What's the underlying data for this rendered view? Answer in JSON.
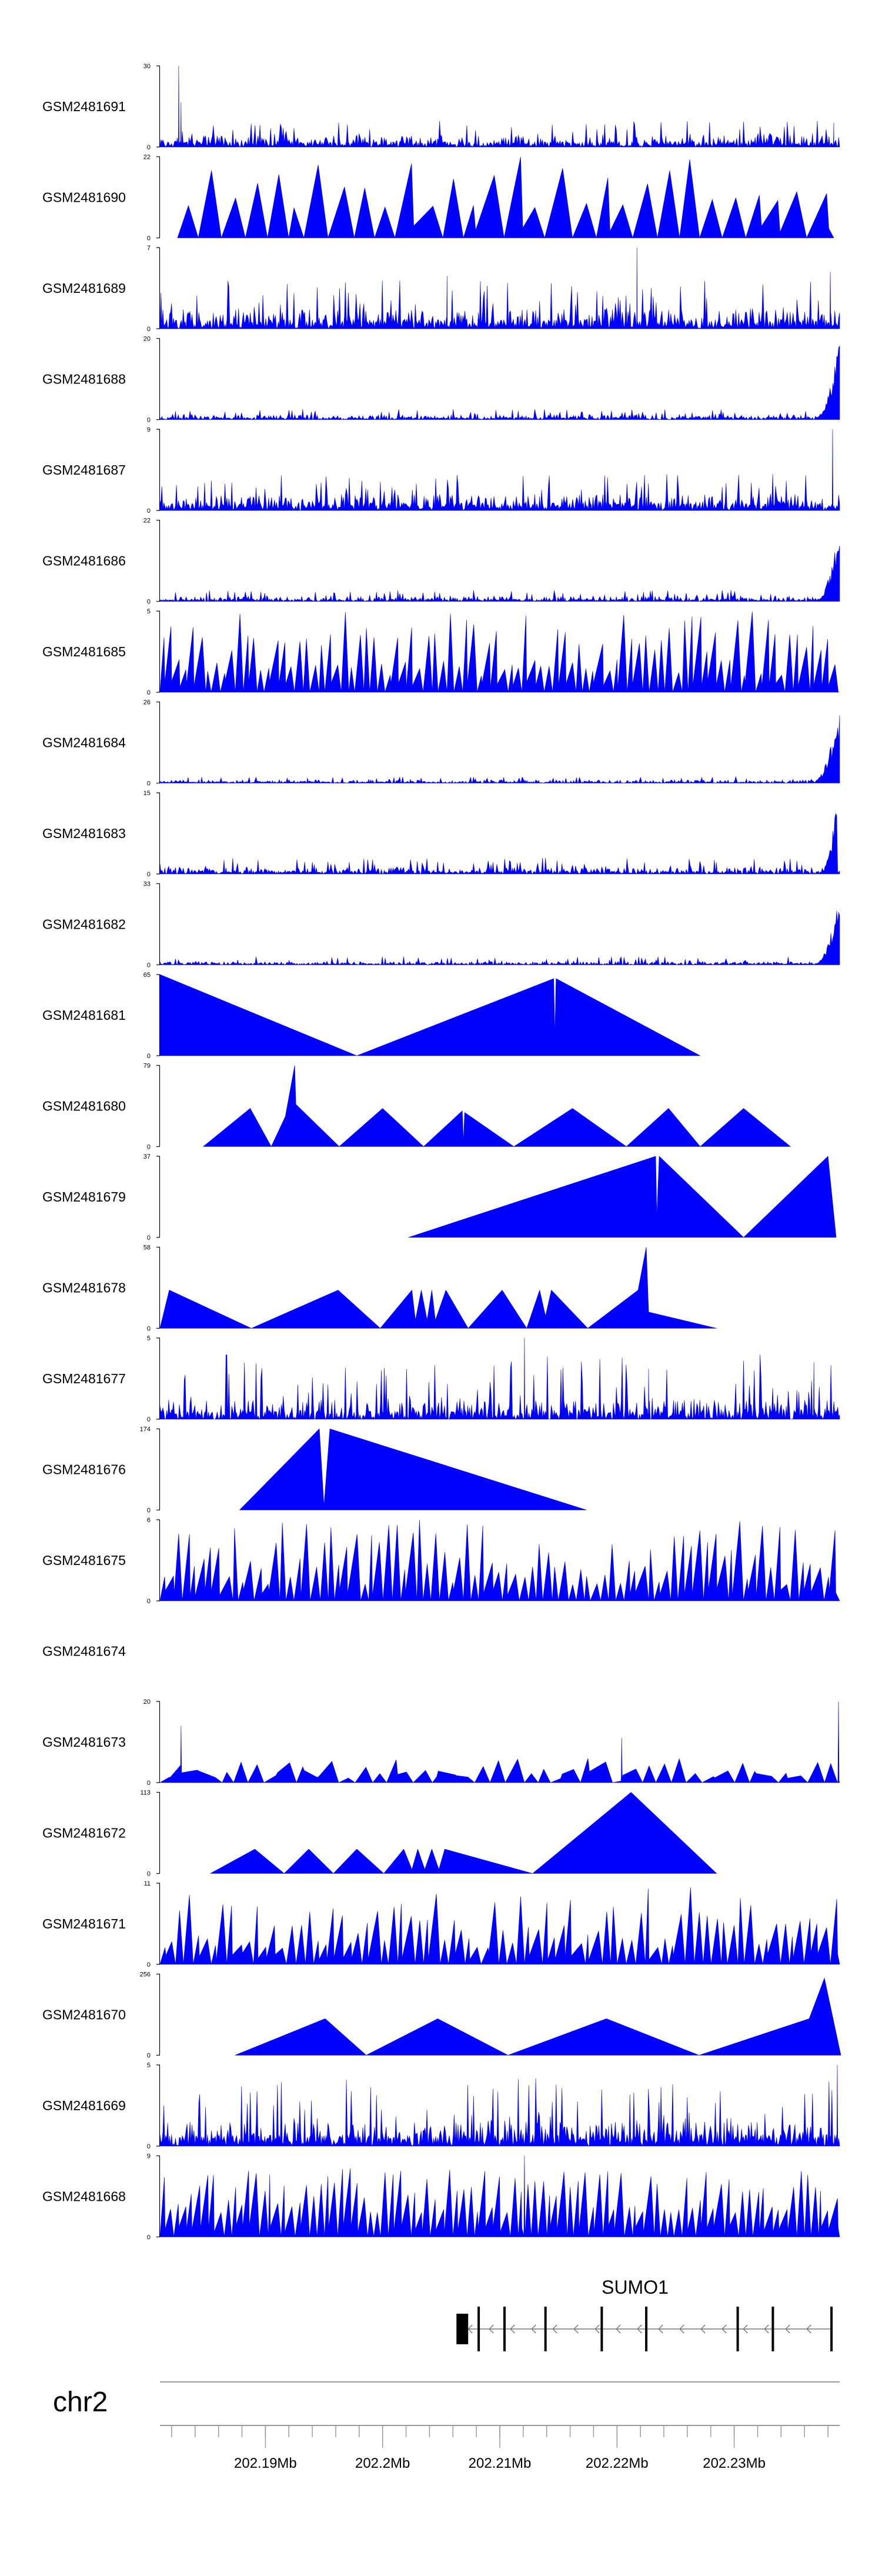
{
  "chart_data": {
    "type": "area",
    "title": "",
    "fill_color": "#0000ff",
    "axis_color": "#000000",
    "genome_axis_color": "#999999",
    "chromosome": "chr2",
    "xlim_mb": [
      202.181,
      202.239
    ],
    "x_ticks": [
      {
        "value": 202.19,
        "label": "202.19Mb"
      },
      {
        "value": 202.2,
        "label": "202.2Mb"
      },
      {
        "value": 202.21,
        "label": "202.21Mb"
      },
      {
        "value": 202.22,
        "label": "202.22Mb"
      },
      {
        "value": 202.23,
        "label": "202.23Mb"
      }
    ],
    "tracks": [
      {
        "name": "GSM2481691",
        "ymax": 30,
        "ymin": 0,
        "style": "noise",
        "density": 1.0,
        "base": 0.07,
        "peak": 0.32,
        "seed": 11,
        "spikes": [
          [
            202.1826,
            1.0
          ],
          [
            202.1828,
            0.55
          ],
          [
            202.2385,
            0.3
          ]
        ]
      },
      {
        "name": "GSM2481690",
        "ymax": 22,
        "ymin": 0,
        "style": "spiky",
        "count": 30,
        "from": 202.1825,
        "to": 202.2385,
        "lo": 0.35,
        "hi": 1.0,
        "seed": 12
      },
      {
        "name": "GSM2481689",
        "ymax": 7,
        "ymin": 0,
        "style": "noise",
        "density": 1.0,
        "base": 0.12,
        "peak": 0.6,
        "seed": 13,
        "spikes": [
          [
            202.2217,
            1.0
          ],
          [
            202.2055,
            0.65
          ],
          [
            202.2382,
            0.7
          ]
        ]
      },
      {
        "name": "GSM2481688",
        "ymax": 20,
        "ymin": 0,
        "style": "noise",
        "density": 1.0,
        "base": 0.03,
        "peak": 0.13,
        "seed": 14,
        "rise": [
          202.2366,
          202.239,
          1.0
        ]
      },
      {
        "name": "GSM2481687",
        "ymax": 9,
        "ymin": 0,
        "style": "noise",
        "density": 1.0,
        "base": 0.1,
        "peak": 0.45,
        "seed": 15,
        "spikes": [
          [
            202.2384,
            1.0
          ]
        ]
      },
      {
        "name": "GSM2481686",
        "ymax": 22,
        "ymin": 0,
        "style": "noise",
        "density": 1.0,
        "base": 0.03,
        "peak": 0.14,
        "seed": 16,
        "rise": [
          202.2368,
          202.239,
          1.0
        ]
      },
      {
        "name": "GSM2481685",
        "ymax": 5,
        "ymin": 0,
        "style": "spiky",
        "count": 90,
        "from": 202.181,
        "to": 202.239,
        "lo": 0.2,
        "hi": 1.0,
        "seed": 17
      },
      {
        "name": "GSM2481684",
        "ymax": 26,
        "ymin": 0,
        "style": "noise",
        "density": 1.0,
        "base": 0.02,
        "peak": 0.08,
        "seed": 18,
        "rise": [
          202.2365,
          202.239,
          1.0
        ]
      },
      {
        "name": "GSM2481683",
        "ymax": 15,
        "ymin": 0,
        "style": "noise",
        "density": 1.0,
        "base": 0.04,
        "peak": 0.2,
        "seed": 19,
        "rise": [
          202.2372,
          202.2388,
          1.0
        ]
      },
      {
        "name": "GSM2481682",
        "ymax": 33,
        "ymin": 0,
        "style": "noise",
        "density": 1.0,
        "base": 0.02,
        "peak": 0.1,
        "seed": 20,
        "rise": [
          202.2367,
          202.239,
          0.95
        ]
      },
      {
        "name": "GSM2481681",
        "ymax": 65,
        "ymin": 0,
        "style": "triangles",
        "points": [
          [
            202.181,
            0
          ],
          [
            202.181,
            1.0
          ],
          [
            202.1978,
            0
          ],
          [
            202.2146,
            0.95
          ],
          [
            202.2147,
            0.25
          ],
          [
            202.2148,
            0.95
          ],
          [
            202.2271,
            0
          ]
        ]
      },
      {
        "name": "GSM2481680",
        "ymax": 79,
        "ymin": 0,
        "style": "triangles",
        "points": [
          [
            202.1847,
            0
          ],
          [
            202.1887,
            0.47
          ],
          [
            202.1905,
            0
          ],
          [
            202.1917,
            0.37
          ],
          [
            202.1925,
            1.0
          ],
          [
            202.1926,
            0.52
          ],
          [
            202.1963,
            0
          ],
          [
            202.2,
            0.47
          ],
          [
            202.2035,
            0
          ],
          [
            202.2068,
            0.44
          ],
          [
            202.2069,
            0.06
          ],
          [
            202.207,
            0.42
          ],
          [
            202.2112,
            0
          ],
          [
            202.2162,
            0.47
          ],
          [
            202.2208,
            0
          ],
          [
            202.2244,
            0.47
          ],
          [
            202.2271,
            0
          ],
          [
            202.2308,
            0.47
          ],
          [
            202.2348,
            0
          ]
        ]
      },
      {
        "name": "GSM2481679",
        "ymax": 37,
        "ymin": 0,
        "style": "triangles",
        "points": [
          [
            202.2022,
            0
          ],
          [
            202.2233,
            1.0
          ],
          [
            202.2234,
            0.25
          ],
          [
            202.2236,
            1.0
          ],
          [
            202.2308,
            0
          ],
          [
            202.238,
            1.0
          ],
          [
            202.2387,
            0
          ]
        ]
      },
      {
        "name": "GSM2481678",
        "ymax": 58,
        "ymin": 0,
        "style": "triangles",
        "points": [
          [
            202.181,
            0
          ],
          [
            202.1818,
            0.47
          ],
          [
            202.1888,
            0
          ],
          [
            202.1962,
            0.47
          ],
          [
            202.1998,
            0
          ],
          [
            202.2025,
            0.47
          ],
          [
            202.2028,
            0.1
          ],
          [
            202.2033,
            0.47
          ],
          [
            202.2038,
            0.1
          ],
          [
            202.2042,
            0.47
          ],
          [
            202.2045,
            0.1
          ],
          [
            202.2054,
            0.47
          ],
          [
            202.2073,
            0
          ],
          [
            202.2102,
            0.47
          ],
          [
            202.2123,
            0
          ],
          [
            202.2134,
            0.47
          ],
          [
            202.2139,
            0.15
          ],
          [
            202.2144,
            0.47
          ],
          [
            202.2175,
            0
          ],
          [
            202.2218,
            0.47
          ],
          [
            202.2225,
            1.0
          ],
          [
            202.2227,
            0.2
          ],
          [
            202.2285,
            0
          ]
        ]
      },
      {
        "name": "GSM2481677",
        "ymax": 5,
        "ymin": 0,
        "style": "noise",
        "density": 0.9,
        "base": 0.12,
        "peak": 0.8,
        "seed": 21,
        "spikes": [
          [
            202.2121,
            1.0
          ],
          [
            202.2227,
            0.62
          ],
          [
            202.2368,
            0.7
          ]
        ]
      },
      {
        "name": "GSM2481676",
        "ymax": 174,
        "ymin": 0,
        "style": "triangles",
        "points": [
          [
            202.1878,
            0
          ],
          [
            202.1946,
            1.0
          ],
          [
            202.195,
            0.05
          ],
          [
            202.1955,
            1.0
          ],
          [
            202.2174,
            0
          ]
        ]
      },
      {
        "name": "GSM2481675",
        "ymax": 6,
        "ymin": 0,
        "style": "spiky",
        "count": 85,
        "from": 202.181,
        "to": 202.239,
        "lo": 0.2,
        "hi": 1.0,
        "seed": 22
      },
      {
        "name": "GSM2481674",
        "ymax": null,
        "ymin": null,
        "style": "empty"
      },
      {
        "name": "GSM2481673",
        "ymax": 20,
        "ymin": 0,
        "style": "spiky",
        "count": 45,
        "from": 202.181,
        "to": 202.239,
        "lo": 0.05,
        "hi": 0.3,
        "seed": 23,
        "spikes": [
          [
            202.1828,
            0.7
          ],
          [
            202.2204,
            0.55
          ],
          [
            202.2389,
            1.0
          ]
        ]
      },
      {
        "name": "GSM2481672",
        "ymax": 113,
        "ymin": 0,
        "style": "triangles",
        "points": [
          [
            202.1853,
            0
          ],
          [
            202.1891,
            0.3
          ],
          [
            202.1916,
            0
          ],
          [
            202.1937,
            0.3
          ],
          [
            202.1958,
            0
          ],
          [
            202.1978,
            0.3
          ],
          [
            202.2001,
            0
          ],
          [
            202.2018,
            0.3
          ],
          [
            202.2025,
            0.05
          ],
          [
            202.203,
            0.3
          ],
          [
            202.2036,
            0.05
          ],
          [
            202.2042,
            0.3
          ],
          [
            202.2048,
            0.05
          ],
          [
            202.2053,
            0.3
          ],
          [
            202.2128,
            0
          ],
          [
            202.2212,
            1.0
          ],
          [
            202.2285,
            0
          ]
        ]
      },
      {
        "name": "GSM2481671",
        "ymax": 11,
        "ymin": 0,
        "style": "spiky",
        "count": 80,
        "from": 202.181,
        "to": 202.239,
        "lo": 0.2,
        "hi": 0.95,
        "seed": 24
      },
      {
        "name": "GSM2481670",
        "ymax": 256,
        "ymin": 0,
        "style": "triangles",
        "points": [
          [
            202.1874,
            0
          ],
          [
            202.1951,
            0.45
          ],
          [
            202.1986,
            0
          ],
          [
            202.2047,
            0.45
          ],
          [
            202.2107,
            0
          ],
          [
            202.2191,
            0.45
          ],
          [
            202.227,
            0
          ],
          [
            202.2364,
            0.45
          ],
          [
            202.2377,
            0.95
          ],
          [
            202.2398,
            0
          ]
        ]
      },
      {
        "name": "GSM2481669",
        "ymax": 5,
        "ymin": 0,
        "style": "noise",
        "density": 1.0,
        "base": 0.15,
        "peak": 0.85,
        "seed": 25,
        "spikes": [
          [
            202.2388,
            1.0
          ]
        ]
      },
      {
        "name": "GSM2481668",
        "ymax": 9,
        "ymin": 0,
        "style": "spiky",
        "count": 95,
        "from": 202.181,
        "to": 202.239,
        "lo": 0.3,
        "hi": 0.85,
        "seed": 26,
        "spikes": [
          [
            202.2121,
            1.0
          ]
        ]
      }
    ],
    "gene": {
      "name": "SUMO1",
      "strand": "-",
      "start": 202.2063,
      "end": 202.2384,
      "exons": [
        [
          202.2063,
          202.2073
        ],
        [
          202.2081,
          202.2083
        ],
        [
          202.2103,
          202.2105
        ],
        [
          202.2138,
          202.214
        ],
        [
          202.2186,
          202.2188
        ],
        [
          202.2224,
          202.2226
        ],
        [
          202.2302,
          202.2304
        ],
        [
          202.2332,
          202.2334
        ],
        [
          202.2382,
          202.2384
        ]
      ]
    }
  }
}
